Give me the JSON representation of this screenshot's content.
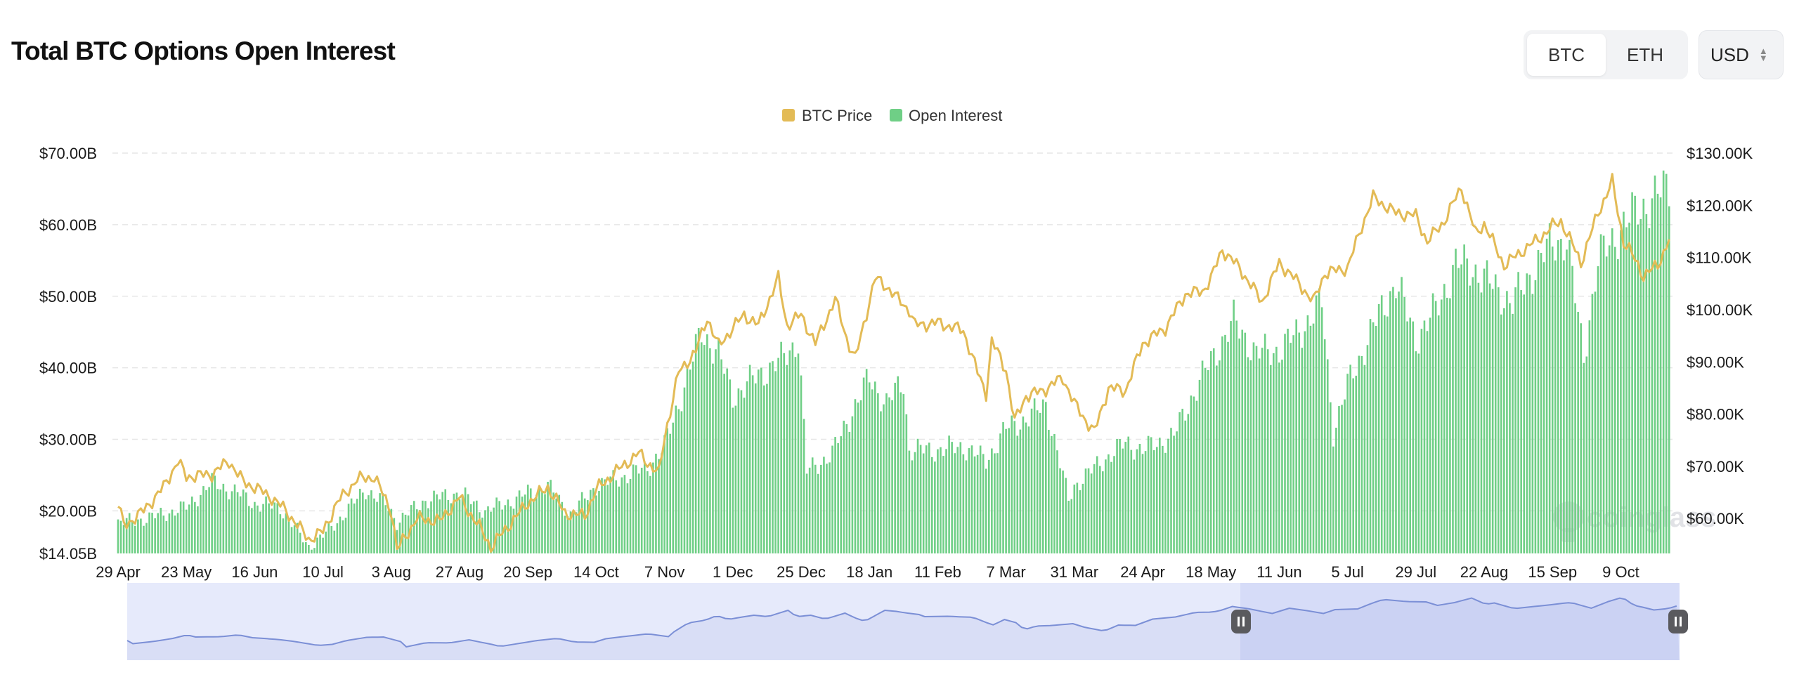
{
  "header": {
    "title": "Total BTC Options Open Interest",
    "asset_toggle": [
      {
        "label": "BTC",
        "active": true
      },
      {
        "label": "ETH",
        "active": false
      }
    ],
    "currency": "USD"
  },
  "legend": [
    {
      "name": "BTC Price",
      "color": "#e3bb56"
    },
    {
      "name": "Open Interest",
      "color": "#6fcf86"
    }
  ],
  "watermark": "coinglass",
  "colors": {
    "price_line": "#e3bb56",
    "oi_bars": "#6fcf86",
    "navigator_line": "#7b8fd6",
    "navigator_fill": "#e6eafb",
    "navigator_selected": "#d6dcf8",
    "grid": "#e6e6e6"
  },
  "chart_data": {
    "type": "bar",
    "title": "Total BTC Options Open Interest",
    "legend_position": "top-center",
    "grid": true,
    "x_tick_labels": [
      "29 Apr",
      "23 May",
      "16 Jun",
      "10 Jul",
      "3 Aug",
      "27 Aug",
      "20 Sep",
      "14 Oct",
      "7 Nov",
      "1 Dec",
      "25 Dec",
      "18 Jan",
      "11 Feb",
      "7 Mar",
      "31 Mar",
      "24 Apr",
      "18 May",
      "11 Jun",
      "5 Jul",
      "29 Jul",
      "22 Aug",
      "15 Sep",
      "9 Oct"
    ],
    "y_left": {
      "ticks": [
        "$70.00B",
        "$60.00B",
        "$50.00B",
        "$40.00B",
        "$30.00B",
        "$20.00B",
        "$14.05B"
      ],
      "min": 14.05,
      "max": 70.0,
      "unit": "B USD"
    },
    "y_right": {
      "ticks": [
        "$130.00K",
        "$120.00K",
        "$110.00K",
        "$100.00K",
        "$90.00K",
        "$80.00K",
        "$70.00K",
        "$60.00K"
      ],
      "min": 53.3,
      "max": 130.0,
      "unit": "K USD"
    },
    "series": [
      {
        "name": "Open Interest",
        "type": "bar",
        "axis": "left",
        "points": [
          [
            "29 Apr",
            18.3
          ],
          [
            "10 May",
            19.0
          ],
          [
            "23 May",
            20.5
          ],
          [
            "1 Jun",
            24.0
          ],
          [
            "10 Jun",
            22.5
          ],
          [
            "16 Jun",
            21.0
          ],
          [
            "25 Jun",
            20.5
          ],
          [
            "5 Jul",
            15.0
          ],
          [
            "10 Jul",
            16.5
          ],
          [
            "15 Jul",
            18.5
          ],
          [
            "25 Jul",
            23.0
          ],
          [
            "1 Aug",
            21.0
          ],
          [
            "5 Aug",
            18.5
          ],
          [
            "15 Aug",
            21.5
          ],
          [
            "27 Aug",
            22.5
          ],
          [
            "5 Sep",
            20.0
          ],
          [
            "15 Sep",
            21.5
          ],
          [
            "20 Sep",
            22.5
          ],
          [
            "27 Sep",
            23.5
          ],
          [
            "5 Oct",
            19.5
          ],
          [
            "14 Oct",
            23.5
          ],
          [
            "25 Oct",
            25.0
          ],
          [
            "1 Nov",
            26.0
          ],
          [
            "7 Nov",
            29.0
          ],
          [
            "12 Nov",
            35.0
          ],
          [
            "20 Nov",
            45.0
          ],
          [
            "26 Nov",
            42.0
          ],
          [
            "1 Dec",
            36.0
          ],
          [
            "10 Dec",
            39.0
          ],
          [
            "18 Dec",
            41.0
          ],
          [
            "24 Dec",
            44.0
          ],
          [
            "27 Dec",
            25.5
          ],
          [
            "5 Jan",
            28.0
          ],
          [
            "12 Jan",
            34.0
          ],
          [
            "18 Jan",
            38.5
          ],
          [
            "24 Jan",
            35.0
          ],
          [
            "30 Jan",
            38.0
          ],
          [
            "1 Feb",
            28.5
          ],
          [
            "11 Feb",
            28.5
          ],
          [
            "20 Feb",
            29.0
          ],
          [
            "28 Feb",
            27.0
          ],
          [
            "7 Mar",
            31.5
          ],
          [
            "15 Mar",
            33.0
          ],
          [
            "21 Mar",
            35.0
          ],
          [
            "29 Mar",
            21.5
          ],
          [
            "31 Mar",
            23.5
          ],
          [
            "10 Apr",
            27.0
          ],
          [
            "18 Apr",
            29.5
          ],
          [
            "24 Apr",
            28.5
          ],
          [
            "5 May",
            30.5
          ],
          [
            "12 May",
            36.5
          ],
          [
            "18 May",
            41.0
          ],
          [
            "26 May",
            46.5
          ],
          [
            "3 Jun",
            42.0
          ],
          [
            "11 Jun",
            42.5
          ],
          [
            "18 Jun",
            45.0
          ],
          [
            "26 Jun",
            49.0
          ],
          [
            "30 Jun",
            31.0
          ],
          [
            "5 Jul",
            37.5
          ],
          [
            "15 Jul",
            46.5
          ],
          [
            "22 Jul",
            52.0
          ],
          [
            "29 Jul",
            44.0
          ],
          [
            "5 Aug",
            48.0
          ],
          [
            "12 Aug",
            54.5
          ],
          [
            "18 Aug",
            54.0
          ],
          [
            "22 Aug",
            52.5
          ],
          [
            "1 Sep",
            49.0
          ],
          [
            "8 Sep",
            53.5
          ],
          [
            "15 Sep",
            57.5
          ],
          [
            "20 Sep",
            58.0
          ],
          [
            "26 Sep",
            41.5
          ],
          [
            "1 Oct",
            55.0
          ],
          [
            "9 Oct",
            59.5
          ],
          [
            "15 Oct",
            62.0
          ],
          [
            "22 Oct",
            64.0
          ],
          [
            "26 Oct",
            65.5
          ]
        ]
      },
      {
        "name": "BTC Price",
        "type": "line",
        "axis": "right",
        "points": [
          [
            "29 Apr",
            63.0
          ],
          [
            "1 May",
            58.5
          ],
          [
            "8 May",
            61.5
          ],
          [
            "15 May",
            66.0
          ],
          [
            "20 May",
            71.0
          ],
          [
            "23 May",
            68.0
          ],
          [
            "1 Jun",
            68.5
          ],
          [
            "7 Jun",
            71.0
          ],
          [
            "12 Jun",
            67.0
          ],
          [
            "16 Jun",
            66.0
          ],
          [
            "22 Jun",
            64.0
          ],
          [
            "27 Jun",
            61.5
          ],
          [
            "5 Jul",
            56.0
          ],
          [
            "10 Jul",
            57.5
          ],
          [
            "15 Jul",
            63.0
          ],
          [
            "22 Jul",
            67.5
          ],
          [
            "28 Jul",
            68.0
          ],
          [
            "3 Aug",
            61.5
          ],
          [
            "5 Aug",
            54.0
          ],
          [
            "12 Aug",
            60.0
          ],
          [
            "20 Aug",
            59.5
          ],
          [
            "27 Aug",
            64.0
          ],
          [
            "4 Sep",
            57.5
          ],
          [
            "7 Sep",
            54.5
          ],
          [
            "13 Sep",
            58.5
          ],
          [
            "20 Sep",
            63.0
          ],
          [
            "27 Sep",
            66.0
          ],
          [
            "3 Oct",
            61.0
          ],
          [
            "10 Oct",
            60.5
          ],
          [
            "14 Oct",
            65.5
          ],
          [
            "21 Oct",
            69.0
          ],
          [
            "29 Oct",
            72.5
          ],
          [
            "5 Nov",
            68.5
          ],
          [
            "7 Nov",
            75.5
          ],
          [
            "12 Nov",
            88.0
          ],
          [
            "18 Nov",
            92.0
          ],
          [
            "22 Nov",
            98.5
          ],
          [
            "26 Nov",
            93.0
          ],
          [
            "1 Dec",
            96.5
          ],
          [
            "5 Dec",
            99.0
          ],
          [
            "10 Dec",
            97.0
          ],
          [
            "17 Dec",
            106.0
          ],
          [
            "20 Dec",
            97.0
          ],
          [
            "25 Dec",
            99.0
          ],
          [
            "30 Dec",
            93.5
          ],
          [
            "6 Jan",
            102.0
          ],
          [
            "10 Jan",
            94.5
          ],
          [
            "13 Jan",
            90.5
          ],
          [
            "20 Jan",
            106.0
          ],
          [
            "24 Jan",
            104.5
          ],
          [
            "28 Jan",
            102.0
          ],
          [
            "1 Feb",
            100.0
          ],
          [
            "3 Feb",
            97.0
          ],
          [
            "11 Feb",
            97.5
          ],
          [
            "20 Feb",
            96.0
          ],
          [
            "25 Feb",
            88.0
          ],
          [
            "28 Feb",
            84.0
          ],
          [
            "2 Mar",
            94.0
          ],
          [
            "7 Mar",
            88.5
          ],
          [
            "10 Mar",
            78.5
          ],
          [
            "14 Mar",
            83.5
          ],
          [
            "20 Mar",
            84.5
          ],
          [
            "27 Mar",
            87.0
          ],
          [
            "31 Mar",
            82.0
          ],
          [
            "7 Apr",
            76.5
          ],
          [
            "12 Apr",
            85.0
          ],
          [
            "18 Apr",
            84.5
          ],
          [
            "24 Apr",
            93.5
          ],
          [
            "2 May",
            96.5
          ],
          [
            "9 May",
            103.0
          ],
          [
            "15 May",
            103.5
          ],
          [
            "18 May",
            106.0
          ],
          [
            "22 May",
            111.5
          ],
          [
            "28 May",
            108.0
          ],
          [
            "5 Jun",
            101.5
          ],
          [
            "11 Jun",
            109.0
          ],
          [
            "18 Jun",
            105.0
          ],
          [
            "23 Jun",
            101.5
          ],
          [
            "27 Jun",
            107.0
          ],
          [
            "5 Jul",
            108.0
          ],
          [
            "10 Jul",
            116.0
          ],
          [
            "14 Jul",
            121.5
          ],
          [
            "22 Jul",
            118.5
          ],
          [
            "29 Jul",
            118.0
          ],
          [
            "2 Aug",
            113.0
          ],
          [
            "8 Aug",
            117.0
          ],
          [
            "14 Aug",
            123.5
          ],
          [
            "19 Aug",
            114.5
          ],
          [
            "22 Aug",
            116.5
          ],
          [
            "29 Aug",
            108.5
          ],
          [
            "5 Sep",
            111.5
          ],
          [
            "10 Sep",
            113.5
          ],
          [
            "15 Sep",
            116.0
          ],
          [
            "18 Sep",
            117.0
          ],
          [
            "22 Sep",
            112.5
          ],
          [
            "25 Sep",
            109.0
          ],
          [
            "1 Oct",
            118.5
          ],
          [
            "6 Oct",
            124.5
          ],
          [
            "10 Oct",
            113.0
          ],
          [
            "12 Oct",
            111.5
          ],
          [
            "17 Oct",
            106.5
          ],
          [
            "22 Oct",
            108.5
          ],
          [
            "26 Oct",
            113.5
          ]
        ]
      }
    ]
  }
}
